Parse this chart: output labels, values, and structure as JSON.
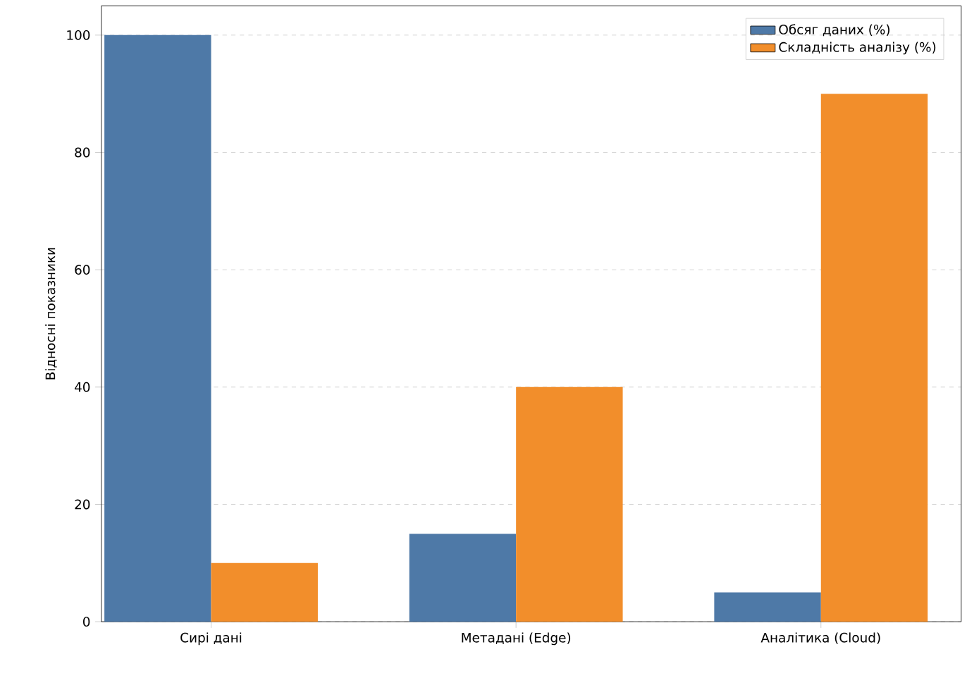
{
  "chart_data": {
    "type": "bar",
    "ylabel": "Відносні показники",
    "categories": [
      "Сирі дані",
      "Метадані (Edge)",
      "Аналітика (Cloud)"
    ],
    "series": [
      {
        "name": "Обсяг даних (%)",
        "color": "#4e79a7",
        "values": [
          100,
          15,
          5
        ]
      },
      {
        "name": "Складність аналізу (%)",
        "color": "#f28e2b",
        "values": [
          10,
          40,
          90
        ]
      }
    ],
    "ylim": [
      0,
      105
    ],
    "yticks": [
      0,
      20,
      40,
      60,
      80,
      100
    ],
    "grid": "y",
    "legend": "top right"
  }
}
